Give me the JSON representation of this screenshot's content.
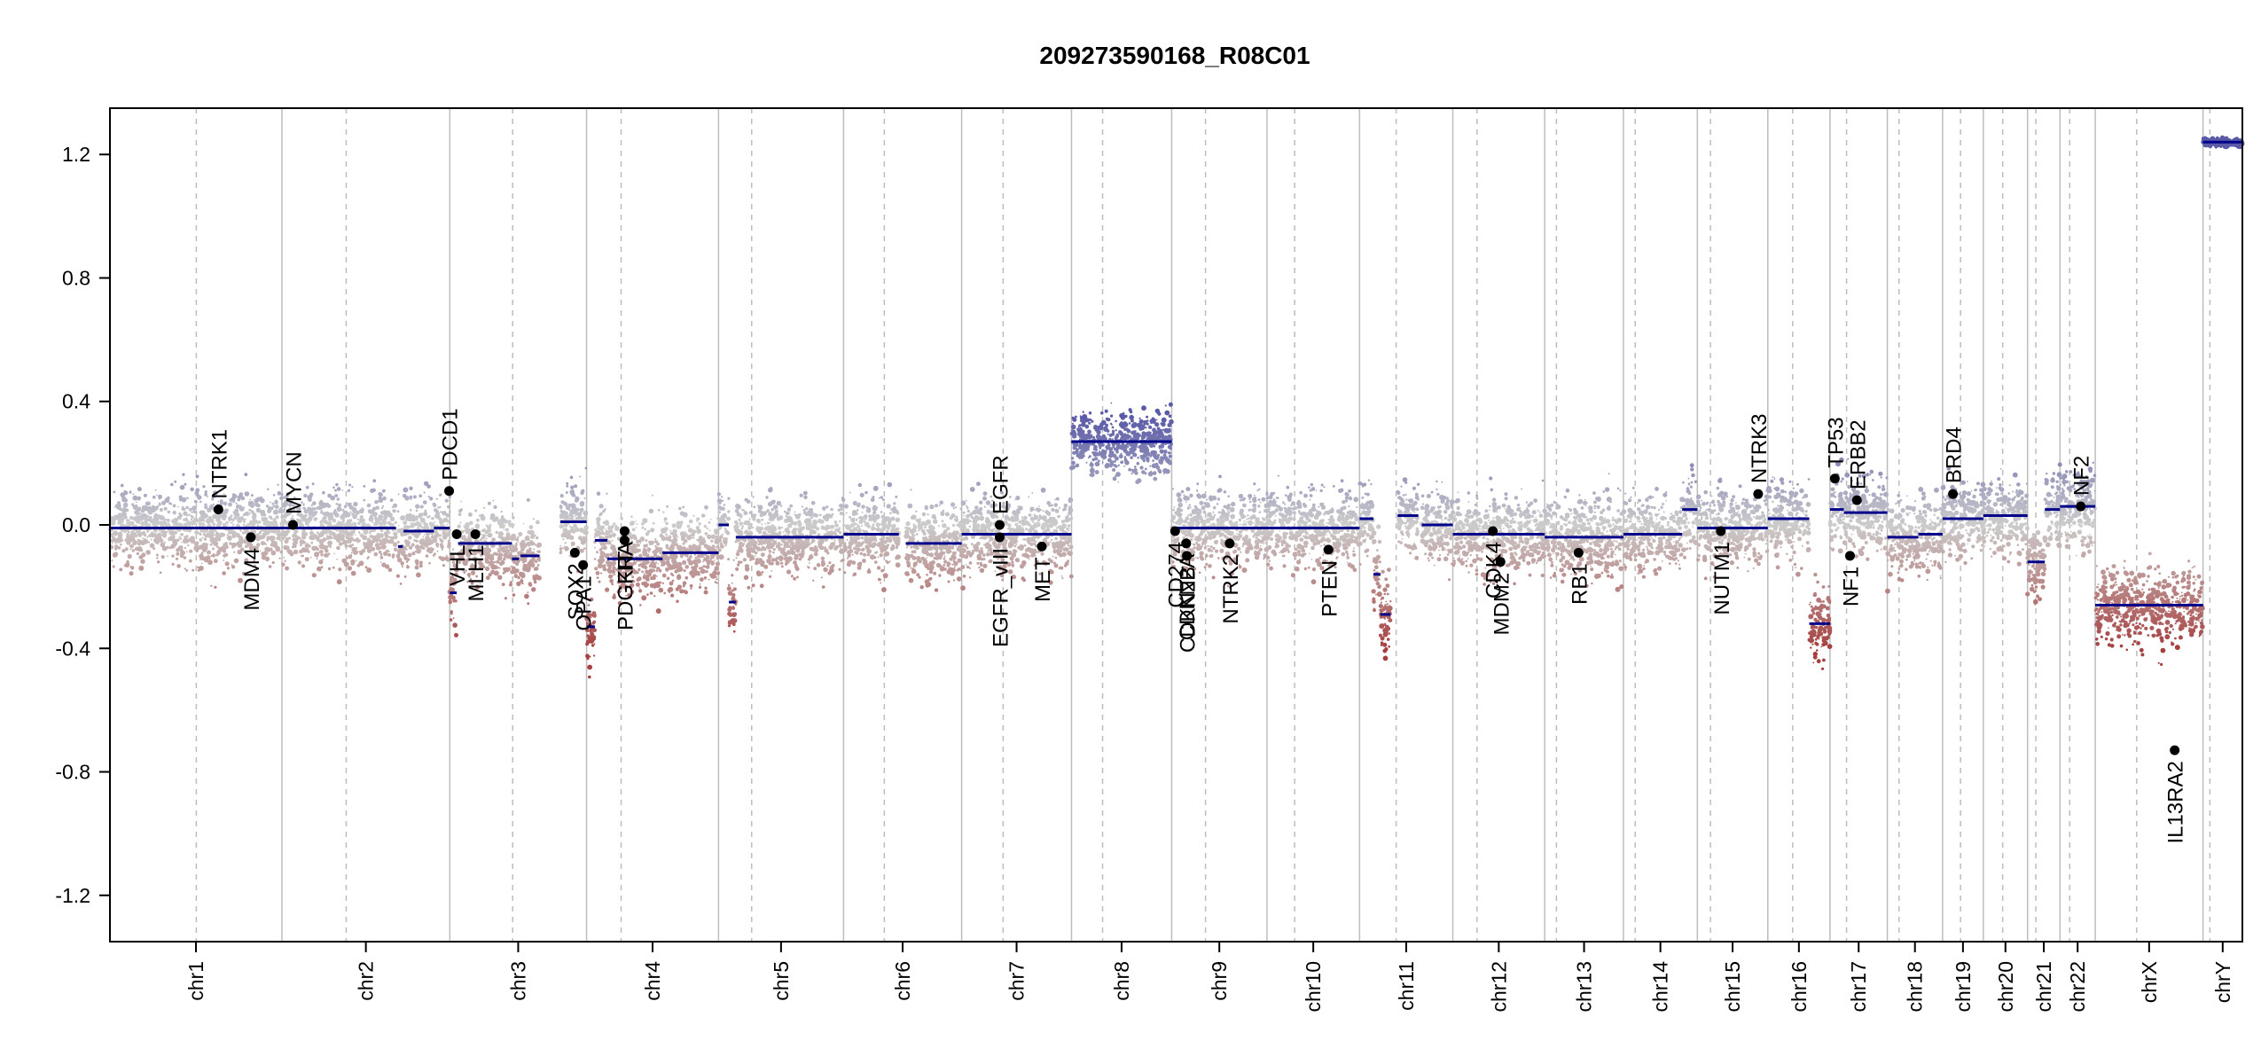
{
  "chart_data": {
    "type": "scatter",
    "title": "209273590168_R08C01",
    "xlabel": "",
    "ylabel": "",
    "ylim": [
      -1.35,
      1.35
    ],
    "yticks": [
      -1.2,
      -0.8,
      -0.4,
      0.0,
      0.4,
      0.8,
      1.2
    ],
    "ytick_labels": [
      "-1.2",
      "-0.8",
      "-0.4",
      "0.0",
      "0.4",
      "0.8",
      "1.2"
    ],
    "grid": false,
    "colors": {
      "segment": "#00008B",
      "gain": "#5A5AA8",
      "neutral": "#CCCCCC",
      "loss": "#A64040",
      "gene_dot": "#000000",
      "chrom_border": "#BDBDBD",
      "centromere": "#BDBDBD"
    },
    "chromosomes": [
      {
        "name": "chr1",
        "len": 249,
        "cen": 125
      },
      {
        "name": "chr2",
        "len": 243,
        "cen": 93
      },
      {
        "name": "chr3",
        "len": 198,
        "cen": 91
      },
      {
        "name": "chr4",
        "len": 191,
        "cen": 50
      },
      {
        "name": "chr5",
        "len": 181,
        "cen": 48
      },
      {
        "name": "chr6",
        "len": 171,
        "cen": 59
      },
      {
        "name": "chr7",
        "len": 159,
        "cen": 60
      },
      {
        "name": "chr8",
        "len": 145,
        "cen": 45
      },
      {
        "name": "chr9",
        "len": 138,
        "cen": 49
      },
      {
        "name": "chr10",
        "len": 134,
        "cen": 40
      },
      {
        "name": "chr11",
        "len": 135,
        "cen": 53
      },
      {
        "name": "chr12",
        "len": 133,
        "cen": 35
      },
      {
        "name": "chr13",
        "len": 114,
        "cen": 17
      },
      {
        "name": "chr14",
        "len": 107,
        "cen": 17
      },
      {
        "name": "chr15",
        "len": 102,
        "cen": 19
      },
      {
        "name": "chr16",
        "len": 90,
        "cen": 36
      },
      {
        "name": "chr17",
        "len": 83,
        "cen": 24
      },
      {
        "name": "chr18",
        "len": 80,
        "cen": 17
      },
      {
        "name": "chr19",
        "len": 59,
        "cen": 26
      },
      {
        "name": "chr20",
        "len": 64,
        "cen": 28
      },
      {
        "name": "chr21",
        "len": 47,
        "cen": 12
      },
      {
        "name": "chr22",
        "len": 51,
        "cen": 14
      },
      {
        "name": "chrX",
        "len": 156,
        "cen": 60
      },
      {
        "name": "chrY",
        "len": 57,
        "cen": 10
      }
    ],
    "segments": [
      {
        "chr": "chr1",
        "start": 0,
        "end": 249,
        "value": -0.01
      },
      {
        "chr": "chr2",
        "start": 0,
        "end": 165,
        "value": -0.01
      },
      {
        "chr": "chr2",
        "start": 168,
        "end": 175,
        "value": -0.07
      },
      {
        "chr": "chr2",
        "start": 176,
        "end": 220,
        "value": -0.02
      },
      {
        "chr": "chr2",
        "start": 220,
        "end": 243,
        "value": -0.01
      },
      {
        "chr": "chr3",
        "start": 0,
        "end": 10,
        "value": -0.22
      },
      {
        "chr": "chr3",
        "start": 12,
        "end": 90,
        "value": -0.06
      },
      {
        "chr": "chr3",
        "start": 90,
        "end": 100,
        "value": -0.11
      },
      {
        "chr": "chr3",
        "start": 102,
        "end": 130,
        "value": -0.1
      },
      {
        "chr": "chr3",
        "start": 160,
        "end": 198,
        "value": 0.01
      },
      {
        "chr": "chr4",
        "start": 0,
        "end": 12,
        "value": -0.33
      },
      {
        "chr": "chr4",
        "start": 12,
        "end": 30,
        "value": -0.05
      },
      {
        "chr": "chr4",
        "start": 30,
        "end": 110,
        "value": -0.11
      },
      {
        "chr": "chr4",
        "start": 110,
        "end": 150,
        "value": -0.09
      },
      {
        "chr": "chr4",
        "start": 150,
        "end": 191,
        "value": -0.09
      },
      {
        "chr": "chr5",
        "start": 0,
        "end": 15,
        "value": 0.0
      },
      {
        "chr": "chr5",
        "start": 15,
        "end": 25,
        "value": -0.25
      },
      {
        "chr": "chr5",
        "start": 25,
        "end": 181,
        "value": -0.04
      },
      {
        "chr": "chr6",
        "start": 0,
        "end": 80,
        "value": -0.03
      },
      {
        "chr": "chr6",
        "start": 90,
        "end": 171,
        "value": -0.06
      },
      {
        "chr": "chr7",
        "start": 0,
        "end": 159,
        "value": -0.03
      },
      {
        "chr": "chr8",
        "start": 0,
        "end": 145,
        "value": 0.27
      },
      {
        "chr": "chr9",
        "start": 0,
        "end": 138,
        "value": -0.01
      },
      {
        "chr": "chr10",
        "start": 0,
        "end": 134,
        "value": -0.01
      },
      {
        "chr": "chr11",
        "start": 0,
        "end": 20,
        "value": 0.02
      },
      {
        "chr": "chr11",
        "start": 20,
        "end": 30,
        "value": -0.16
      },
      {
        "chr": "chr11",
        "start": 30,
        "end": 45,
        "value": -0.29
      },
      {
        "chr": "chr11",
        "start": 55,
        "end": 85,
        "value": 0.03
      },
      {
        "chr": "chr11",
        "start": 90,
        "end": 135,
        "value": 0.0
      },
      {
        "chr": "chr12",
        "start": 0,
        "end": 133,
        "value": -0.03
      },
      {
        "chr": "chr13",
        "start": 0,
        "end": 114,
        "value": -0.04
      },
      {
        "chr": "chr14",
        "start": 0,
        "end": 85,
        "value": -0.03
      },
      {
        "chr": "chr14",
        "start": 85,
        "end": 107,
        "value": 0.05
      },
      {
        "chr": "chr15",
        "start": 0,
        "end": 102,
        "value": -0.01
      },
      {
        "chr": "chr16",
        "start": 0,
        "end": 60,
        "value": 0.02
      },
      {
        "chr": "chr16",
        "start": 60,
        "end": 90,
        "value": -0.32
      },
      {
        "chr": "chr17",
        "start": 0,
        "end": 20,
        "value": 0.05
      },
      {
        "chr": "chr17",
        "start": 20,
        "end": 83,
        "value": 0.04
      },
      {
        "chr": "chr18",
        "start": 0,
        "end": 45,
        "value": -0.04
      },
      {
        "chr": "chr18",
        "start": 45,
        "end": 80,
        "value": -0.03
      },
      {
        "chr": "chr19",
        "start": 0,
        "end": 59,
        "value": 0.02
      },
      {
        "chr": "chr20",
        "start": 0,
        "end": 64,
        "value": 0.03
      },
      {
        "chr": "chr21",
        "start": 0,
        "end": 25,
        "value": -0.12
      },
      {
        "chr": "chr21",
        "start": 25,
        "end": 47,
        "value": 0.05
      },
      {
        "chr": "chr22",
        "start": 0,
        "end": 51,
        "value": 0.06
      },
      {
        "chr": "chrX",
        "start": 0,
        "end": 156,
        "value": -0.26
      },
      {
        "chr": "chrY",
        "start": 0,
        "end": 57,
        "value": 1.24
      }
    ],
    "genes": [
      {
        "name": "NTRK1",
        "chr": "chr1",
        "pos": 157,
        "value": 0.05,
        "label_side": "above"
      },
      {
        "name": "MDM4",
        "chr": "chr1",
        "pos": 204,
        "value": -0.04,
        "label_side": "below"
      },
      {
        "name": "MYCN",
        "chr": "chr2",
        "pos": 16,
        "value": 0.0,
        "label_side": "above"
      },
      {
        "name": "PDCD1",
        "chr": "chr2",
        "pos": 242,
        "value": 0.11,
        "label_side": "above"
      },
      {
        "name": "VHL",
        "chr": "chr3",
        "pos": 10,
        "value": -0.03,
        "label_side": "below"
      },
      {
        "name": "MLH1",
        "chr": "chr3",
        "pos": 37,
        "value": -0.03,
        "label_side": "below"
      },
      {
        "name": "SOX2",
        "chr": "chr3",
        "pos": 181,
        "value": -0.09,
        "label_side": "below"
      },
      {
        "name": "OPA1",
        "chr": "chr3",
        "pos": 193,
        "value": -0.13,
        "label_side": "below"
      },
      {
        "name": "PDGFRA",
        "chr": "chr4",
        "pos": 55,
        "value": -0.02,
        "label_side": "below"
      },
      {
        "name": "KIT",
        "chr": "chr4",
        "pos": 55,
        "value": -0.05,
        "label_side": "below"
      },
      {
        "name": "EGFR",
        "chr": "chr7",
        "pos": 55,
        "value": 0.0,
        "label_side": "above"
      },
      {
        "name": "EGFR_vIII",
        "chr": "chr7",
        "pos": 55,
        "value": -0.04,
        "label_side": "below"
      },
      {
        "name": "MET",
        "chr": "chr7",
        "pos": 116,
        "value": -0.07,
        "label_side": "below"
      },
      {
        "name": "CDKN2A",
        "chr": "chr9",
        "pos": 21,
        "value": -0.06,
        "label_side": "below"
      },
      {
        "name": "CDKN2B",
        "chr": "chr9",
        "pos": 22,
        "value": -0.1,
        "label_side": "below"
      },
      {
        "name": "CD274",
        "chr": "chr9",
        "pos": 5,
        "value": -0.02,
        "label_side": "below"
      },
      {
        "name": "NTRK2",
        "chr": "chr9",
        "pos": 84,
        "value": -0.06,
        "label_side": "below"
      },
      {
        "name": "PTEN",
        "chr": "chr10",
        "pos": 89,
        "value": -0.08,
        "label_side": "below"
      },
      {
        "name": "CDK4",
        "chr": "chr12",
        "pos": 58,
        "value": -0.02,
        "label_side": "below"
      },
      {
        "name": "MDM2",
        "chr": "chr12",
        "pos": 69,
        "value": -0.12,
        "label_side": "below"
      },
      {
        "name": "RB1",
        "chr": "chr13",
        "pos": 49,
        "value": -0.09,
        "label_side": "below"
      },
      {
        "name": "NUTM1",
        "chr": "chr15",
        "pos": 34,
        "value": -0.02,
        "label_side": "below"
      },
      {
        "name": "NTRK3",
        "chr": "chr15",
        "pos": 88,
        "value": 0.1,
        "label_side": "above"
      },
      {
        "name": "TP53",
        "chr": "chr17",
        "pos": 7,
        "value": 0.15,
        "label_side": "above"
      },
      {
        "name": "NF1",
        "chr": "chr17",
        "pos": 29,
        "value": -0.1,
        "label_side": "below"
      },
      {
        "name": "ERBB2",
        "chr": "chr17",
        "pos": 39,
        "value": 0.08,
        "label_side": "above"
      },
      {
        "name": "BRD4",
        "chr": "chr19",
        "pos": 15,
        "value": 0.1,
        "label_side": "above"
      },
      {
        "name": "NF2",
        "chr": "chr22",
        "pos": 30,
        "value": 0.06,
        "label_side": "above"
      },
      {
        "name": "IL13RA2",
        "chr": "chrX",
        "pos": 115,
        "value": -0.73,
        "label_side": "below"
      }
    ]
  }
}
